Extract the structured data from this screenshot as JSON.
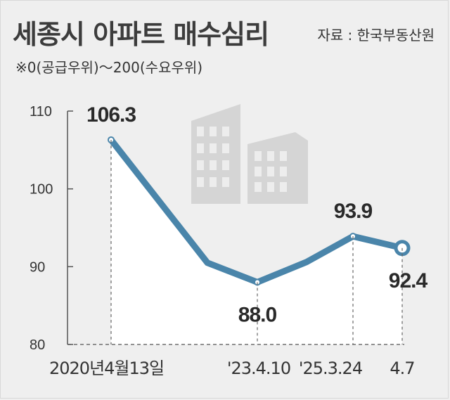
{
  "header": {
    "title": "세종시 아파트 매수심리",
    "source": "자료 : 한국부동산원",
    "note": "※0(공급우위)～200(수요우위)"
  },
  "colors": {
    "line": "#4a85aa",
    "area": "#ffffff",
    "background": "#efefef",
    "building": "#cccccc"
  },
  "icons": [
    "building-illustration-icon"
  ],
  "chart_data": {
    "type": "line",
    "ylim": [
      80,
      110
    ],
    "yticks": [
      80,
      90,
      100,
      110
    ],
    "grid": false,
    "x_labels": [
      "2020년4월13일",
      "'23.4.10",
      "'25.3.24",
      "4.7"
    ],
    "points": [
      {
        "x": "2020년4월13일",
        "y": 106.3,
        "label": "106.3"
      },
      {
        "x": "",
        "y": 90.5,
        "label": ""
      },
      {
        "x": "'23.4.10",
        "y": 88.0,
        "label": "88.0"
      },
      {
        "x": "",
        "y": 90.6,
        "label": ""
      },
      {
        "x": "'25.3.24",
        "y": 93.9,
        "label": "93.9"
      },
      {
        "x": "4.7",
        "y": 92.4,
        "label": "92.4"
      }
    ]
  }
}
